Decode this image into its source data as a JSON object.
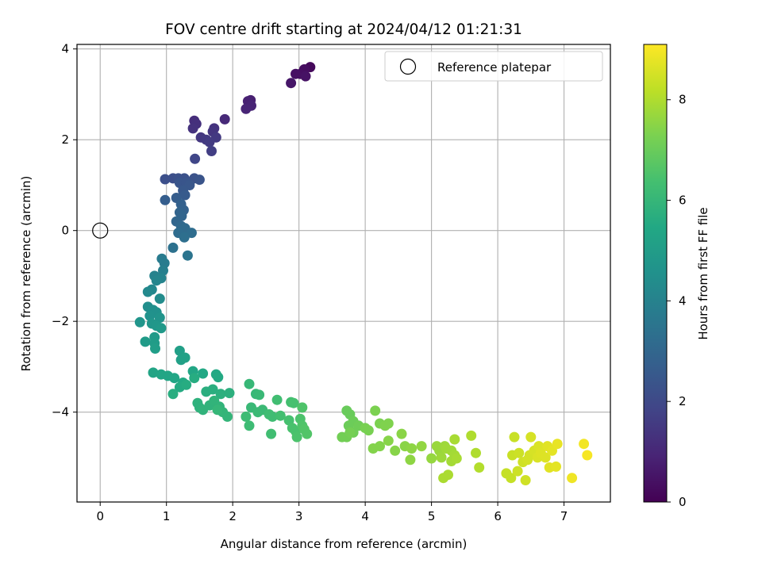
{
  "chart_data": {
    "type": "scatter",
    "title": "FOV centre drift starting at 2024/04/12 01:21:31",
    "xlabel": "Angular distance from reference (arcmin)",
    "ylabel": "Rotation from reference (arcmin)",
    "xlim": [
      -0.35,
      7.7
    ],
    "ylim": [
      -5.98,
      4.1
    ],
    "xticks": [
      0,
      1,
      2,
      3,
      4,
      5,
      6,
      7
    ],
    "yticks": [
      4,
      2,
      0,
      -2,
      -4
    ],
    "ytick_labels": [
      "4",
      "2",
      "0",
      "−2",
      "−4"
    ],
    "grid": true,
    "legend": {
      "location": "top-right",
      "entries": [
        {
          "label": "Reference platepar",
          "marker": "open-circle"
        }
      ]
    },
    "reference_point": {
      "x": 0,
      "y": 0
    },
    "colorbar": {
      "label": "Hours from first FF file",
      "range": [
        0,
        9.1
      ],
      "ticks": [
        0,
        2,
        4,
        6,
        8
      ],
      "colormap": "viridis"
    },
    "points": [
      [
        3.17,
        3.6,
        0.2
      ],
      [
        3.08,
        3.55,
        0.3
      ],
      [
        3.02,
        3.45,
        0.35
      ],
      [
        2.95,
        3.45,
        0.4
      ],
      [
        3.1,
        3.4,
        0.45
      ],
      [
        2.88,
        3.25,
        0.55
      ],
      [
        2.27,
        2.87,
        0.8
      ],
      [
        2.23,
        2.85,
        0.85
      ],
      [
        2.28,
        2.75,
        0.9
      ],
      [
        2.2,
        2.68,
        0.95
      ],
      [
        1.88,
        2.45,
        1.05
      ],
      [
        1.42,
        2.42,
        1.2
      ],
      [
        1.45,
        2.35,
        1.25
      ],
      [
        1.4,
        2.25,
        1.3
      ],
      [
        1.72,
        2.25,
        1.35
      ],
      [
        1.7,
        2.18,
        1.4
      ],
      [
        1.52,
        2.05,
        1.45
      ],
      [
        1.6,
        2.0,
        1.5
      ],
      [
        1.75,
        2.05,
        1.5
      ],
      [
        1.65,
        1.95,
        1.55
      ],
      [
        1.68,
        1.75,
        1.65
      ],
      [
        1.43,
        1.58,
        1.9
      ],
      [
        0.98,
        1.13,
        2.2
      ],
      [
        1.1,
        1.15,
        2.2
      ],
      [
        1.18,
        1.15,
        2.25
      ],
      [
        1.27,
        1.15,
        2.25
      ],
      [
        1.42,
        1.15,
        2.3
      ],
      [
        1.5,
        1.12,
        2.35
      ],
      [
        1.2,
        1.05,
        2.4
      ],
      [
        1.3,
        1.05,
        2.4
      ],
      [
        1.35,
        1.0,
        2.45
      ],
      [
        1.25,
        0.88,
        2.5
      ],
      [
        1.28,
        0.78,
        2.6
      ],
      [
        1.15,
        0.72,
        2.65
      ],
      [
        0.98,
        0.67,
        2.7
      ],
      [
        1.22,
        0.58,
        2.8
      ],
      [
        1.26,
        0.45,
        2.85
      ],
      [
        1.2,
        0.4,
        2.9
      ],
      [
        1.23,
        0.32,
        2.95
      ],
      [
        1.15,
        0.2,
        3.0
      ],
      [
        1.22,
        0.1,
        3.1
      ],
      [
        1.28,
        0.05,
        3.15
      ],
      [
        1.18,
        -0.05,
        3.2
      ],
      [
        1.38,
        -0.05,
        3.25
      ],
      [
        1.27,
        -0.15,
        3.3
      ],
      [
        1.1,
        -0.38,
        3.4
      ],
      [
        1.32,
        -0.55,
        3.5
      ],
      [
        0.93,
        -0.62,
        3.75
      ],
      [
        0.97,
        -0.72,
        3.8
      ],
      [
        0.95,
        -0.88,
        3.9
      ],
      [
        0.82,
        -1.0,
        4.0
      ],
      [
        0.92,
        -1.05,
        4.05
      ],
      [
        0.85,
        -1.1,
        4.1
      ],
      [
        0.78,
        -1.3,
        4.2
      ],
      [
        0.72,
        -1.35,
        4.25
      ],
      [
        0.9,
        -1.5,
        4.35
      ],
      [
        0.72,
        -1.68,
        4.45
      ],
      [
        0.8,
        -1.75,
        4.5
      ],
      [
        0.85,
        -1.8,
        4.55
      ],
      [
        0.75,
        -1.88,
        4.6
      ],
      [
        0.9,
        -1.92,
        4.65
      ],
      [
        0.6,
        -2.02,
        4.7
      ],
      [
        0.78,
        -2.05,
        4.75
      ],
      [
        0.85,
        -2.1,
        4.8
      ],
      [
        0.92,
        -2.15,
        4.85
      ],
      [
        0.82,
        -2.35,
        4.9
      ],
      [
        0.68,
        -2.45,
        4.95
      ],
      [
        0.82,
        -2.48,
        5.0
      ],
      [
        0.83,
        -2.6,
        5.05
      ],
      [
        1.2,
        -2.65,
        5.1
      ],
      [
        1.22,
        -2.85,
        5.15
      ],
      [
        1.28,
        -2.8,
        5.2
      ],
      [
        0.8,
        -3.13,
        5.3
      ],
      [
        0.92,
        -3.17,
        5.35
      ],
      [
        1.02,
        -3.2,
        5.35
      ],
      [
        1.12,
        -3.25,
        5.4
      ],
      [
        1.4,
        -3.1,
        5.4
      ],
      [
        1.55,
        -3.15,
        5.45
      ],
      [
        1.75,
        -3.17,
        5.45
      ],
      [
        1.78,
        -3.23,
        5.5
      ],
      [
        1.25,
        -3.35,
        5.5
      ],
      [
        1.2,
        -3.45,
        5.55
      ],
      [
        1.3,
        -3.4,
        5.6
      ],
      [
        1.42,
        -3.25,
        5.6
      ],
      [
        1.1,
        -3.6,
        5.65
      ],
      [
        1.6,
        -3.55,
        5.7
      ],
      [
        1.7,
        -3.5,
        5.7
      ],
      [
        1.82,
        -3.6,
        5.75
      ],
      [
        1.95,
        -3.58,
        5.75
      ],
      [
        1.47,
        -3.8,
        5.8
      ],
      [
        1.5,
        -3.9,
        5.8
      ],
      [
        1.55,
        -3.95,
        5.85
      ],
      [
        1.65,
        -3.85,
        5.85
      ],
      [
        1.72,
        -3.75,
        5.9
      ],
      [
        1.8,
        -3.88,
        5.9
      ],
      [
        1.85,
        -4.0,
        5.95
      ],
      [
        1.92,
        -4.1,
        5.95
      ],
      [
        1.77,
        -3.95,
        6.0
      ],
      [
        2.25,
        -3.38,
        6.05
      ],
      [
        2.35,
        -3.6,
        6.05
      ],
      [
        2.4,
        -3.62,
        6.1
      ],
      [
        2.28,
        -3.9,
        6.1
      ],
      [
        2.38,
        -4.0,
        6.15
      ],
      [
        2.45,
        -3.95,
        6.15
      ],
      [
        2.2,
        -4.1,
        6.2
      ],
      [
        2.25,
        -4.3,
        6.2
      ],
      [
        2.55,
        -4.05,
        6.25
      ],
      [
        2.6,
        -4.1,
        6.25
      ],
      [
        2.58,
        -4.48,
        6.3
      ],
      [
        2.67,
        -3.73,
        6.3
      ],
      [
        2.72,
        -4.08,
        6.35
      ],
      [
        2.88,
        -3.78,
        6.35
      ],
      [
        2.92,
        -3.8,
        6.4
      ],
      [
        2.85,
        -4.18,
        6.4
      ],
      [
        2.9,
        -4.35,
        6.45
      ],
      [
        2.95,
        -4.42,
        6.45
      ],
      [
        2.97,
        -4.55,
        6.5
      ],
      [
        3.02,
        -4.15,
        6.5
      ],
      [
        3.05,
        -3.9,
        6.55
      ],
      [
        3.05,
        -4.3,
        6.55
      ],
      [
        3.12,
        -4.48,
        6.6
      ],
      [
        3.08,
        -4.38,
        6.6
      ],
      [
        3.72,
        -3.97,
        7.0
      ],
      [
        3.77,
        -4.05,
        7.0
      ],
      [
        3.82,
        -4.2,
        7.05
      ],
      [
        3.75,
        -4.3,
        7.05
      ],
      [
        3.9,
        -4.3,
        7.1
      ],
      [
        3.82,
        -4.45,
        7.1
      ],
      [
        3.65,
        -4.55,
        7.15
      ],
      [
        3.72,
        -4.55,
        7.15
      ],
      [
        3.77,
        -4.45,
        7.2
      ],
      [
        4.0,
        -4.35,
        7.25
      ],
      [
        4.05,
        -4.4,
        7.25
      ],
      [
        4.15,
        -3.97,
        7.3
      ],
      [
        4.22,
        -4.25,
        7.3
      ],
      [
        4.3,
        -4.3,
        7.35
      ],
      [
        4.35,
        -4.25,
        7.35
      ],
      [
        4.12,
        -4.8,
        7.4
      ],
      [
        4.22,
        -4.75,
        7.4
      ],
      [
        4.35,
        -4.63,
        7.45
      ],
      [
        4.45,
        -4.85,
        7.45
      ],
      [
        4.55,
        -4.48,
        7.5
      ],
      [
        4.6,
        -4.75,
        7.5
      ],
      [
        4.7,
        -4.8,
        7.55
      ],
      [
        4.68,
        -5.05,
        7.55
      ],
      [
        4.85,
        -4.75,
        7.6
      ],
      [
        5.0,
        -5.02,
        7.65
      ],
      [
        5.08,
        -4.75,
        7.7
      ],
      [
        5.12,
        -4.85,
        7.7
      ],
      [
        5.15,
        -5.0,
        7.75
      ],
      [
        5.2,
        -4.75,
        7.75
      ],
      [
        5.22,
        -4.8,
        7.8
      ],
      [
        5.3,
        -4.85,
        7.8
      ],
      [
        5.35,
        -4.95,
        7.85
      ],
      [
        5.3,
        -5.08,
        7.85
      ],
      [
        5.38,
        -5.02,
        7.9
      ],
      [
        5.35,
        -4.6,
        7.9
      ],
      [
        5.18,
        -5.45,
        7.95
      ],
      [
        5.25,
        -5.38,
        7.95
      ],
      [
        5.6,
        -4.52,
        8.0
      ],
      [
        5.67,
        -4.9,
        8.0
      ],
      [
        5.72,
        -5.22,
        8.05
      ],
      [
        6.13,
        -5.35,
        8.3
      ],
      [
        6.2,
        -5.45,
        8.3
      ],
      [
        6.22,
        -4.95,
        8.35
      ],
      [
        6.25,
        -4.55,
        8.35
      ],
      [
        6.32,
        -4.9,
        8.4
      ],
      [
        6.3,
        -5.3,
        8.4
      ],
      [
        6.38,
        -5.1,
        8.45
      ],
      [
        6.42,
        -5.5,
        8.45
      ],
      [
        6.45,
        -5.05,
        8.5
      ],
      [
        6.48,
        -4.95,
        8.5
      ],
      [
        6.5,
        -4.55,
        8.55
      ],
      [
        6.55,
        -4.85,
        8.55
      ],
      [
        6.6,
        -5.0,
        8.6
      ],
      [
        6.62,
        -4.75,
        8.6
      ],
      [
        6.65,
        -4.9,
        8.65
      ],
      [
        6.72,
        -5.0,
        8.65
      ],
      [
        6.75,
        -4.75,
        8.7
      ],
      [
        6.78,
        -5.22,
        8.7
      ],
      [
        6.82,
        -4.85,
        8.75
      ],
      [
        6.88,
        -5.2,
        8.75
      ],
      [
        6.9,
        -4.7,
        8.8
      ],
      [
        7.12,
        -5.45,
        8.9
      ],
      [
        7.3,
        -4.7,
        8.95
      ],
      [
        7.35,
        -4.95,
        9.0
      ]
    ]
  }
}
